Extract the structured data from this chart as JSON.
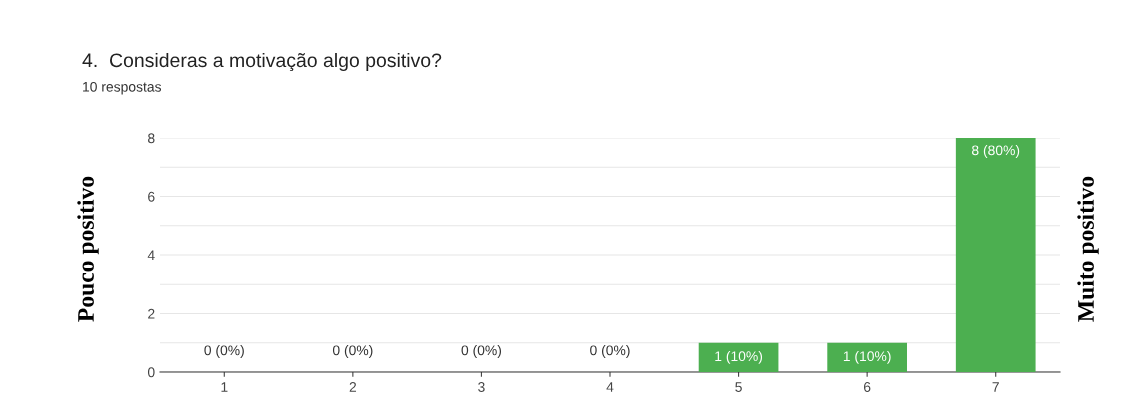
{
  "chart_data": {
    "type": "bar",
    "title": "4.  Consideras a motivação algo positivo?",
    "subtitle": "10 respostas",
    "ylabel": "Pouco positivo",
    "y2label": "Muito positivo",
    "categories": [
      "1",
      "2",
      "3",
      "4",
      "5",
      "6",
      "7"
    ],
    "values": [
      0,
      0,
      0,
      0,
      1,
      1,
      8
    ],
    "value_labels": [
      "0 (0%)",
      "0 (0%)",
      "0 (0%)",
      "0 (0%)",
      "1 (10%)",
      "1 (10%)",
      "8 (80%)"
    ],
    "color": "#4caf50",
    "ylim": [
      0,
      8
    ],
    "yticks": [
      0,
      {
        "value": 1,
        "label": null
      },
      2,
      {
        "value": 3,
        "label": null
      },
      4,
      {
        "value": 5,
        "label": null
      },
      6,
      {
        "value": 7,
        "label": null
      },
      8
    ],
    "grid": "y",
    "legend": false
  }
}
